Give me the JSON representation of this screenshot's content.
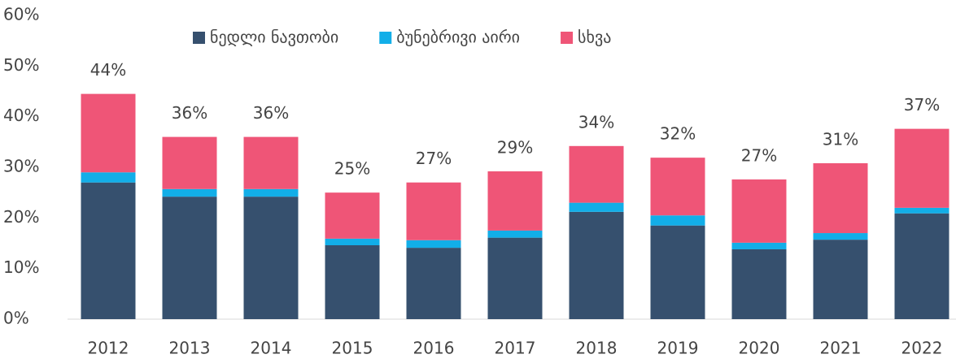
{
  "chart_data": {
    "type": "stacked_bar",
    "categories": [
      "2012",
      "2013",
      "2014",
      "2015",
      "2016",
      "2017",
      "2018",
      "2019",
      "2020",
      "2021",
      "2022"
    ],
    "series": [
      {
        "name": "ნედლი ნავთობი",
        "color": "#36506e",
        "values": [
          27,
          24.2,
          24.2,
          14.6,
          14.1,
          16.1,
          21.2,
          18.5,
          13.8,
          15.7,
          20.9
        ]
      },
      {
        "name": "ბუნებრივი აირი",
        "color": "#12aee8",
        "values": [
          2,
          1.5,
          1.5,
          1.3,
          1.5,
          1.4,
          1.8,
          2,
          1.3,
          1.3,
          1.1
        ]
      },
      {
        "name": "სხვა",
        "color": "#ef5577",
        "values": [
          15.5,
          10.3,
          10.3,
          9.1,
          11.4,
          11.7,
          11.2,
          11.4,
          12.5,
          13.8,
          15.6
        ]
      }
    ],
    "annotations": [
      "44%",
      "36%",
      "36%",
      "25%",
      "27%",
      "29%",
      "34%",
      "32%",
      "27%",
      "31%",
      "37%"
    ],
    "ylim": [
      0,
      60
    ],
    "yticks": [
      {
        "value": 0,
        "label": "0%"
      },
      {
        "value": 10,
        "label": "10%"
      },
      {
        "value": 20,
        "label": "20%"
      },
      {
        "value": 30,
        "label": "30%"
      },
      {
        "value": 40,
        "label": "40%"
      },
      {
        "value": 50,
        "label": "50%"
      },
      {
        "value": 60,
        "label": "60%"
      }
    ],
    "legend": "top"
  }
}
